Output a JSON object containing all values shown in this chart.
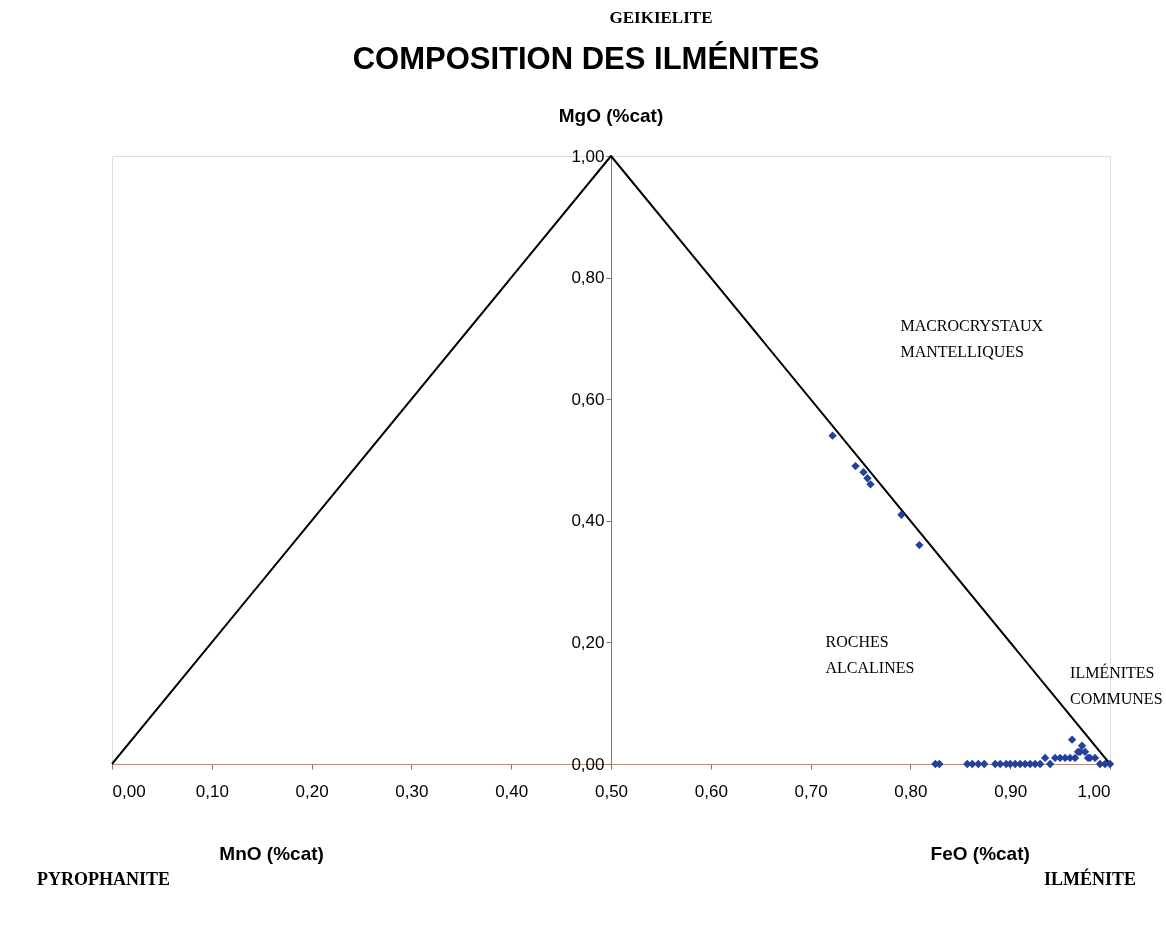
{
  "chart_data": {
    "type": "scatter",
    "title": "COMPOSITION DES ILMÉNITES",
    "ylabel": "MgO (%cat)",
    "xlabel": "FeO (%cat)",
    "annotations": [
      "GEIKIELITE",
      "MnO (%cat)",
      "PYROPHANITE",
      "ILMÉNITE",
      "MACROCRYSTAUX\nMANTELLIQUES",
      "ROCHES\nALCALINES",
      "ILMÉNITES\nCOMMUNES"
    ],
    "xlim": [
      0,
      1
    ],
    "ylim": [
      0,
      1
    ],
    "xticks": [
      {
        "value": 0,
        "label": "0,00"
      },
      {
        "value": 0.1,
        "label": "0,10"
      },
      {
        "value": 0.2,
        "label": "0,20"
      },
      {
        "value": 0.3,
        "label": "0,30"
      },
      {
        "value": 0.4,
        "label": "0,40"
      },
      {
        "value": 0.5,
        "label": "0,50"
      },
      {
        "value": 0.6,
        "label": "0,60"
      },
      {
        "value": 0.7,
        "label": "0,70"
      },
      {
        "value": 0.8,
        "label": "0,80"
      },
      {
        "value": 0.9,
        "label": "0,90"
      },
      {
        "value": 1,
        "label": "1,00"
      }
    ],
    "yticks": [
      {
        "value": 0,
        "label": "0,00"
      },
      {
        "value": 0.2,
        "label": "0,20"
      },
      {
        "value": 0.4,
        "label": "0,40"
      },
      {
        "value": 0.6,
        "label": "0,60"
      },
      {
        "value": 0.8,
        "label": "0,80"
      },
      {
        "value": 1,
        "label": "1,00"
      }
    ],
    "grid": false,
    "series": [
      {
        "type": "line",
        "color": "#000000",
        "x": [
          0,
          0.5,
          1
        ],
        "values": [
          0,
          1,
          0
        ]
      },
      {
        "marker": "diamond",
        "color": "#23409a",
        "x": [
          0.722,
          0.745,
          0.753,
          0.757,
          0.76,
          0.791,
          0.809,
          0.825,
          0.829,
          0.857,
          0.862,
          0.868,
          0.874,
          0.885,
          0.89,
          0.896,
          0.9,
          0.905,
          0.91,
          0.915,
          0.92,
          0.925,
          0.93,
          0.935,
          0.94,
          0.945,
          0.95,
          0.955,
          0.96,
          0.962,
          0.965,
          0.968,
          0.97,
          0.972,
          0.975,
          0.978,
          0.98,
          0.985,
          0.99,
          0.995,
          1.0
        ],
        "values": [
          0.54,
          0.49,
          0.48,
          0.47,
          0.46,
          0.41,
          0.36,
          0,
          0,
          0,
          0,
          0,
          0,
          0,
          0,
          0,
          0,
          0,
          0,
          0,
          0,
          0,
          0,
          0.01,
          0,
          0.01,
          0.01,
          0.01,
          0.01,
          0.04,
          0.01,
          0.02,
          0.02,
          0.03,
          0.02,
          0.01,
          0.01,
          0.01,
          0,
          0,
          0
        ]
      }
    ]
  }
}
